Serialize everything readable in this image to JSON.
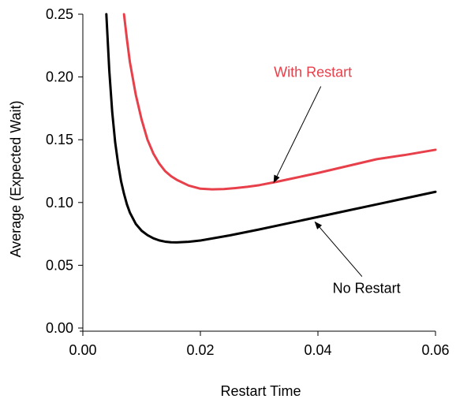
{
  "chart_data": {
    "type": "line",
    "title": "",
    "xlabel": "Restart Time",
    "ylabel": "Average (Expected Wait)",
    "xlim": [
      0.0,
      0.06
    ],
    "ylim": [
      0.0,
      0.25
    ],
    "x_ticks": [
      0.0,
      0.02,
      0.04,
      0.06
    ],
    "x_tick_labels": [
      "0.00",
      "0.02",
      "0.04",
      "0.06"
    ],
    "y_ticks": [
      0.0,
      0.05,
      0.1,
      0.15,
      0.2,
      0.25
    ],
    "y_tick_labels": [
      "0.00",
      "0.05",
      "0.10",
      "0.15",
      "0.20",
      "0.25"
    ],
    "grid": false,
    "legend": "none",
    "series": [
      {
        "color": "#e8404a",
        "x": [
          0.007,
          0.0075,
          0.008,
          0.009,
          0.01,
          0.011,
          0.012,
          0.013,
          0.014,
          0.015,
          0.016,
          0.018,
          0.02,
          0.022,
          0.024,
          0.026,
          0.028,
          0.03,
          0.033,
          0.036,
          0.04,
          0.045,
          0.05,
          0.055,
          0.06
        ],
        "values": [
          0.25,
          0.23,
          0.212,
          0.186,
          0.166,
          0.15,
          0.139,
          0.131,
          0.125,
          0.121,
          0.118,
          0.1135,
          0.111,
          0.1105,
          0.1107,
          0.1115,
          0.1125,
          0.1138,
          0.1165,
          0.1195,
          0.1235,
          0.129,
          0.1345,
          0.138,
          0.142
        ]
      },
      {
        "color": "#000000",
        "x": [
          0.004,
          0.0045,
          0.005,
          0.0055,
          0.006,
          0.0065,
          0.007,
          0.0075,
          0.008,
          0.009,
          0.01,
          0.011,
          0.012,
          0.013,
          0.014,
          0.015,
          0.016,
          0.018,
          0.02,
          0.025,
          0.03,
          0.035,
          0.04,
          0.045,
          0.05,
          0.055,
          0.06
        ],
        "values": [
          0.25,
          0.205,
          0.172,
          0.148,
          0.131,
          0.117,
          0.107,
          0.0985,
          0.092,
          0.083,
          0.0775,
          0.074,
          0.0715,
          0.0698,
          0.0688,
          0.0683,
          0.0682,
          0.0687,
          0.0697,
          0.0738,
          0.0785,
          0.0835,
          0.0885,
          0.0935,
          0.0985,
          0.1035,
          0.1085
        ]
      }
    ],
    "annotations": [
      {
        "text": "With Restart",
        "color": "#e8404a",
        "text_x": 0.0325,
        "text_y": 0.2,
        "arrow_from": [
          0.0405,
          0.1925
        ],
        "arrow_to": [
          0.0325,
          0.116
        ]
      },
      {
        "text": "No Restart",
        "color": "#000000",
        "text_x": 0.0425,
        "text_y": 0.028,
        "arrow_from": [
          0.0475,
          0.041
        ],
        "arrow_to": [
          0.0395,
          0.0845
        ]
      }
    ]
  }
}
